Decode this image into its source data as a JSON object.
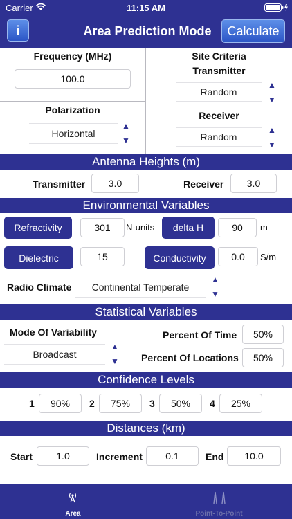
{
  "status": {
    "carrier": "Carrier",
    "time": "11:15 AM"
  },
  "nav": {
    "info_label": "i",
    "title": "Area Prediction Mode",
    "calculate_label": "Calculate"
  },
  "frequency": {
    "label": "Frequency (MHz)",
    "value": "100.0"
  },
  "polarization": {
    "label": "Polarization",
    "value": "Horizontal"
  },
  "site_criteria": {
    "label_line1": "Site Criteria",
    "transmitter_label": "Transmitter",
    "transmitter_value": "Random",
    "receiver_label": "Receiver",
    "receiver_value": "Random"
  },
  "antenna": {
    "header": "Antenna Heights (m)",
    "transmitter_label": "Transmitter",
    "transmitter_value": "3.0",
    "receiver_label": "Receiver",
    "receiver_value": "3.0"
  },
  "environment": {
    "header": "Environmental Variables",
    "refractivity_label": "Refractivity",
    "refractivity_value": "301",
    "refractivity_unit": "N-units",
    "delta_h_label": "delta H",
    "delta_h_value": "90",
    "delta_h_unit": "m",
    "dielectric_label": "Dielectric",
    "dielectric_value": "15",
    "conductivity_label": "Conductivity",
    "conductivity_value": "0.0",
    "conductivity_unit": "S/m",
    "climate_label": "Radio Climate",
    "climate_value": "Continental Temperate"
  },
  "statistical": {
    "header": "Statistical Variables",
    "mode_label": "Mode Of Variability",
    "mode_value": "Broadcast",
    "time_label": "Percent Of Time",
    "time_value": "50%",
    "locations_label": "Percent Of Locations",
    "locations_value": "50%"
  },
  "confidence": {
    "header": "Confidence Levels",
    "items": [
      {
        "num": "1",
        "value": "90%"
      },
      {
        "num": "2",
        "value": "75%"
      },
      {
        "num": "3",
        "value": "50%"
      },
      {
        "num": "4",
        "value": "25%"
      }
    ]
  },
  "distances": {
    "header": "Distances (km)",
    "start_label": "Start",
    "start_value": "1.0",
    "increment_label": "Increment",
    "increment_value": "0.1",
    "end_label": "End",
    "end_value": "10.0"
  },
  "tabs": [
    {
      "label": "Area",
      "icon": "antenna-icon",
      "active": true
    },
    {
      "label": "Point-To-Point",
      "icon": "towers-icon",
      "active": false
    }
  ],
  "colors": {
    "primary": "#2e3192",
    "button_gradient_top": "#5d8fe8",
    "inactive_tab": "#6c6faa"
  }
}
